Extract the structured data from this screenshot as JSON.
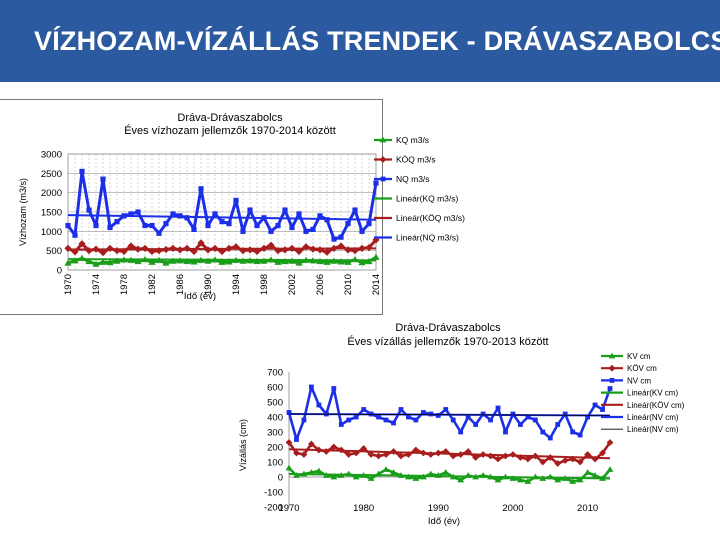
{
  "slide": {
    "title": "VÍZHOZAM-VÍZÁLLÁS TRENDEK - DRÁVASZABOLCS"
  },
  "chart_data": [
    {
      "type": "line",
      "title": "Dráva-Drávaszabolcs",
      "subtitle": "Éves vízhozam jellemzők 1970-2014 között",
      "xlabel": "Idő (év)",
      "ylabel": "Vízhozam (m3/s)",
      "ylim": [
        0,
        3000
      ],
      "yticks": [
        0,
        500,
        1000,
        1500,
        2000,
        2500,
        3000
      ],
      "xticks": [
        1970,
        1974,
        1978,
        1982,
        1986,
        1990,
        1994,
        1998,
        2002,
        2006,
        2010,
        2014
      ],
      "xlim": [
        1970,
        2014
      ],
      "grid": true,
      "legend_position": "right",
      "x": [
        1970,
        1971,
        1972,
        1973,
        1974,
        1975,
        1976,
        1977,
        1978,
        1979,
        1980,
        1981,
        1982,
        1983,
        1984,
        1985,
        1986,
        1987,
        1988,
        1989,
        1990,
        1991,
        1992,
        1993,
        1994,
        1995,
        1996,
        1997,
        1998,
        1999,
        2000,
        2001,
        2002,
        2003,
        2004,
        2005,
        2006,
        2007,
        2008,
        2009,
        2010,
        2011,
        2012,
        2013,
        2014
      ],
      "series": [
        {
          "name": "KQ m3/s",
          "color": "#1a9e1a",
          "marker": "triangle",
          "values": [
            180,
            240,
            300,
            220,
            150,
            200,
            190,
            230,
            260,
            250,
            220,
            270,
            200,
            250,
            180,
            230,
            240,
            220,
            210,
            250,
            230,
            260,
            200,
            210,
            250,
            230,
            240,
            220,
            230,
            260,
            200,
            220,
            230,
            180,
            250,
            240,
            220,
            200,
            230,
            210,
            200,
            270,
            190,
            220,
            330
          ]
        },
        {
          "name": "KÖQ m3/s",
          "color": "#a81d1d",
          "marker": "diamond",
          "values": [
            560,
            470,
            680,
            500,
            540,
            450,
            560,
            500,
            480,
            620,
            540,
            560,
            480,
            500,
            530,
            560,
            520,
            560,
            480,
            700,
            520,
            560,
            480,
            560,
            600,
            500,
            520,
            480,
            560,
            640,
            500,
            520,
            560,
            480,
            600,
            540,
            520,
            460,
            560,
            620,
            520,
            500,
            560,
            580,
            780
          ]
        },
        {
          "name": "NQ m3/s",
          "color": "#1c2fe8",
          "marker": "square",
          "values": [
            1150,
            900,
            2550,
            1550,
            1150,
            2350,
            1100,
            1250,
            1400,
            1450,
            1500,
            1150,
            1150,
            950,
            1200,
            1450,
            1400,
            1350,
            1050,
            2100,
            1150,
            1450,
            1250,
            1200,
            1800,
            1000,
            1550,
            1150,
            1350,
            1000,
            1150,
            1550,
            1100,
            1450,
            1000,
            1050,
            1400,
            1300,
            800,
            850,
            1200,
            1550,
            1000,
            1200,
            2250
          ]
        }
      ],
      "trend_lines": [
        {
          "name": "Lineár(KQ m3/s)",
          "color": "#1a9e1a",
          "start": 280,
          "end": 250
        },
        {
          "name": "Lineár(KÖQ m3/s)",
          "color": "#a81d1d",
          "start": 530,
          "end": 560
        },
        {
          "name": "Lineár(NQ m3/s)",
          "color": "#1c2fe8",
          "start": 1420,
          "end": 1300
        }
      ]
    },
    {
      "type": "line",
      "title": "Dráva-Drávaszabolcs",
      "subtitle": "Éves vízállás jellemzők 1970-2013 között",
      "xlabel": "Idő (év)",
      "ylabel": "Vízállás (cm)",
      "ylim": [
        -200,
        700
      ],
      "yticks": [
        -200,
        -100,
        0,
        100,
        200,
        300,
        400,
        500,
        600,
        700
      ],
      "xticks": [
        1970,
        1980,
        1990,
        2000,
        2010
      ],
      "xlim": [
        1970,
        2013
      ],
      "grid": false,
      "legend_position": "right",
      "x": [
        1970,
        1971,
        1972,
        1973,
        1974,
        1975,
        1976,
        1977,
        1978,
        1979,
        1980,
        1981,
        1982,
        1983,
        1984,
        1985,
        1986,
        1987,
        1988,
        1989,
        1990,
        1991,
        1992,
        1993,
        1994,
        1995,
        1996,
        1997,
        1998,
        1999,
        2000,
        2001,
        2002,
        2003,
        2004,
        2005,
        2006,
        2007,
        2008,
        2009,
        2010,
        2011,
        2012,
        2013
      ],
      "series": [
        {
          "name": "KV cm",
          "color": "#1a9e1a",
          "marker": "triangle",
          "values": [
            60,
            10,
            20,
            30,
            40,
            10,
            0,
            10,
            20,
            0,
            10,
            -10,
            20,
            50,
            30,
            10,
            0,
            -10,
            0,
            20,
            10,
            30,
            0,
            -20,
            10,
            0,
            10,
            0,
            -20,
            0,
            -10,
            -20,
            -30,
            0,
            -10,
            0,
            -20,
            -10,
            -30,
            -20,
            30,
            10,
            -10,
            50
          ]
        },
        {
          "name": "KÖV cm",
          "color": "#a81d1d",
          "marker": "diamond",
          "values": [
            230,
            160,
            150,
            220,
            180,
            170,
            200,
            180,
            150,
            160,
            190,
            150,
            140,
            150,
            170,
            140,
            150,
            180,
            160,
            150,
            160,
            170,
            140,
            150,
            170,
            130,
            150,
            140,
            120,
            140,
            150,
            130,
            120,
            140,
            100,
            130,
            90,
            110,
            120,
            100,
            150,
            120,
            160,
            230
          ]
        },
        {
          "name": "NV cm",
          "color": "#1c2fe8",
          "marker": "square",
          "values": [
            430,
            250,
            380,
            600,
            480,
            420,
            590,
            350,
            380,
            400,
            450,
            420,
            400,
            380,
            360,
            450,
            400,
            380,
            430,
            420,
            410,
            450,
            380,
            300,
            400,
            350,
            420,
            380,
            460,
            300,
            420,
            350,
            400,
            380,
            300,
            260,
            350,
            420,
            300,
            280,
            400,
            480,
            450,
            590
          ]
        }
      ],
      "trend_lines": [
        {
          "name": "Lineár(KV cm)",
          "color": "#1a9e1a",
          "start": 20,
          "end": -10
        },
        {
          "name": "Lineár(KÖV cm)",
          "color": "#a81d1d",
          "start": 185,
          "end": 125
        },
        {
          "name": "Lineár(NV cm)",
          "color": "#1c2fe8",
          "start": 420,
          "end": 410
        },
        {
          "name": "Lineár(NV cm)",
          "color": "#000000",
          "start": 420,
          "end": 410
        }
      ]
    }
  ]
}
